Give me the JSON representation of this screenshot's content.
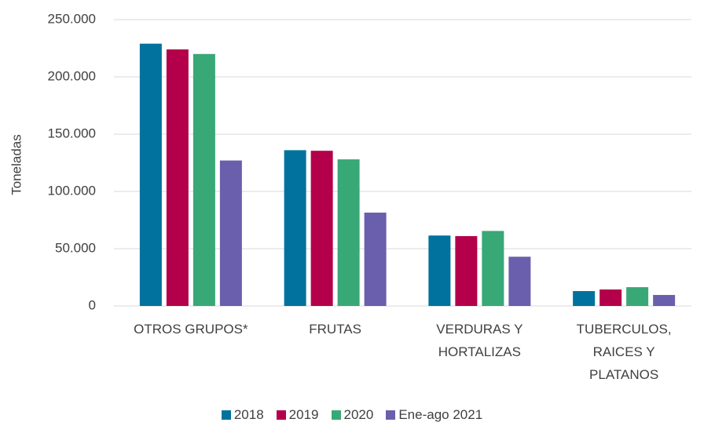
{
  "chart_data": {
    "type": "bar",
    "y_label": "Toneladas",
    "categories": [
      "OTROS GRUPOS*",
      "FRUTAS",
      "VERDURAS Y HORTALIZAS",
      "TUBERCULOS, RAICES Y PLATANOS"
    ],
    "series": [
      {
        "name": "2018",
        "color": "#00729d",
        "values": [
          229000,
          136000,
          61500,
          13000
        ]
      },
      {
        "name": "2019",
        "color": "#b4004b",
        "values": [
          224000,
          135500,
          61000,
          14400
        ]
      },
      {
        "name": "2020",
        "color": "#38a877",
        "values": [
          220000,
          128000,
          65500,
          16400
        ]
      },
      {
        "name": "Ene-ago 2021",
        "color": "#6a5fac",
        "values": [
          127000,
          81500,
          43000,
          9600
        ]
      }
    ],
    "ylim": [
      0,
      250000
    ],
    "yticks": [
      0,
      {
        "value": 50000,
        "label": "50.000"
      },
      {
        "value": 100000,
        "label": "100.000"
      },
      {
        "value": 150000,
        "label": "150.000"
      },
      {
        "value": 200000,
        "label": "200.000"
      },
      {
        "value": 250000,
        "label": "250.000"
      }
    ],
    "grid": true,
    "legend": "bottom"
  }
}
